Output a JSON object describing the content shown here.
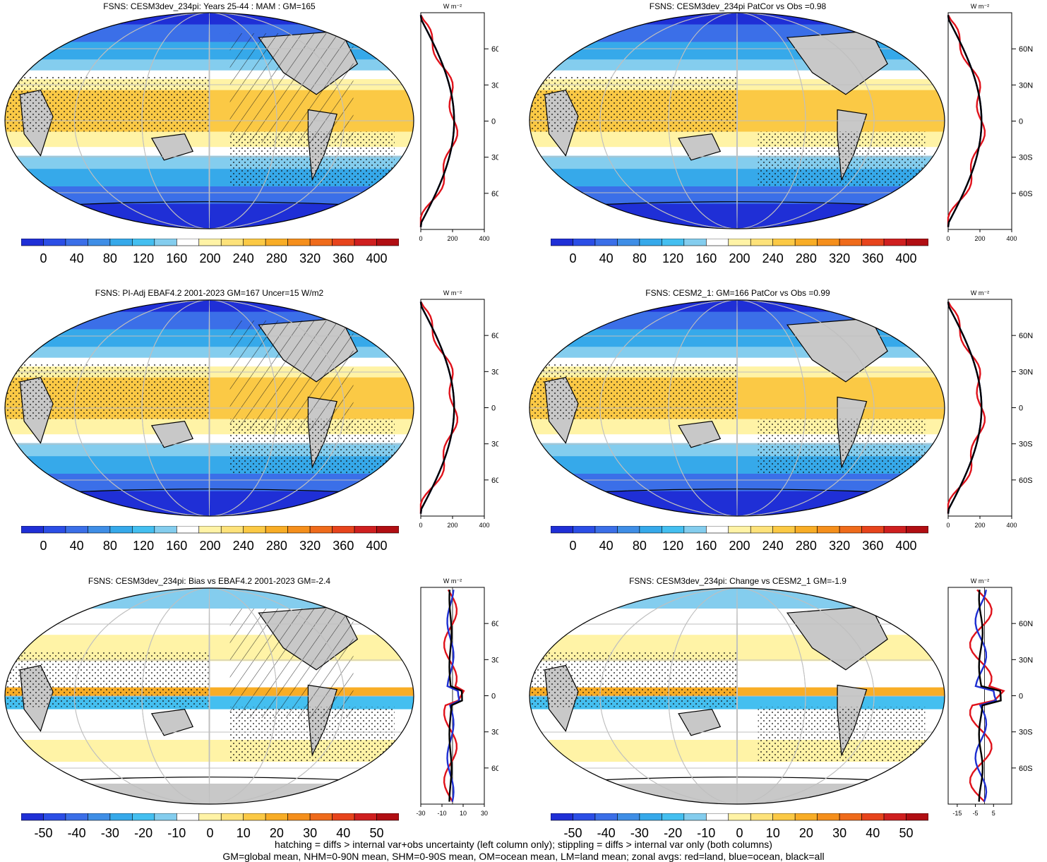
{
  "colors": {
    "cold": [
      "#1f2fd6",
      "#2b4ee6",
      "#3b6fe8",
      "#3f8ee6",
      "#36a9ea",
      "#44bff0",
      "#84cdee",
      "#ffffff",
      "#fff3a6",
      "#fde27a",
      "#fbc945",
      "#f8ad26",
      "#f58f1c",
      "#ef6b1b",
      "#e7441c",
      "#cf1f1f",
      "#b10e13"
    ],
    "land": "#c8c8c8",
    "zonal_land": "#e0121b",
    "zonal_ocean": "#1e2fd2",
    "zonal_all": "#000000"
  },
  "panels": [
    {
      "id": "p1",
      "title": "FSNS: CESM3dev_234pi: Years 25-44 : MAM : GM=165",
      "kind": "abs",
      "hatched": true
    },
    {
      "id": "p2",
      "title": "FSNS: CESM3dev_234pi PatCor vs Obs =0.98",
      "kind": "abs",
      "hatched": false
    },
    {
      "id": "p3",
      "title": "FSNS: PI-Adj EBAF4.2 2001-2023 GM=167 Uncer=15 W/m2",
      "kind": "abs",
      "hatched": true
    },
    {
      "id": "p4",
      "title": "FSNS: CESM2_1: GM=166 PatCor vs Obs =0.99",
      "kind": "abs",
      "hatched": false
    },
    {
      "id": "p5",
      "title": "FSNS: CESM3dev_234pi: Bias vs EBAF4.2 2001-2023 GM=-2.4",
      "kind": "diff",
      "hatched": true
    },
    {
      "id": "p6",
      "title": "FSNS: CESM3dev_234pi: Change vs CESM2_1 GM=-1.9",
      "kind": "diff",
      "hatched": false
    }
  ],
  "zonal_axis": {
    "unit": "W m⁻²",
    "lat_labels": [
      "60N",
      "30N",
      "0",
      "30S",
      "60S"
    ],
    "abs_ticks": [
      "0",
      "200",
      "400"
    ],
    "bias_ticks": [
      "-30",
      "-10",
      "10",
      "30"
    ],
    "change_ticks": [
      "-15",
      "-5",
      "5"
    ]
  },
  "colorbars": {
    "abs_labels": [
      "0",
      "40",
      "80",
      "120",
      "160",
      "200",
      "240",
      "280",
      "320",
      "360",
      "400"
    ],
    "diff_labels": [
      "-50",
      "-40",
      "-30",
      "-20",
      "-10",
      "0",
      "10",
      "20",
      "30",
      "40",
      "50"
    ]
  },
  "footer": {
    "line1": "hatching = diffs > internal var+obs uncertainty (left column only); stippling = diffs > internal var only (both columns)",
    "line2": "GM=global mean, NHM=0-90N mean, SHM=0-90S mean, OM=ocean mean, LM=land mean; zonal avgs: red=land, blue=ocean, black=all"
  }
}
